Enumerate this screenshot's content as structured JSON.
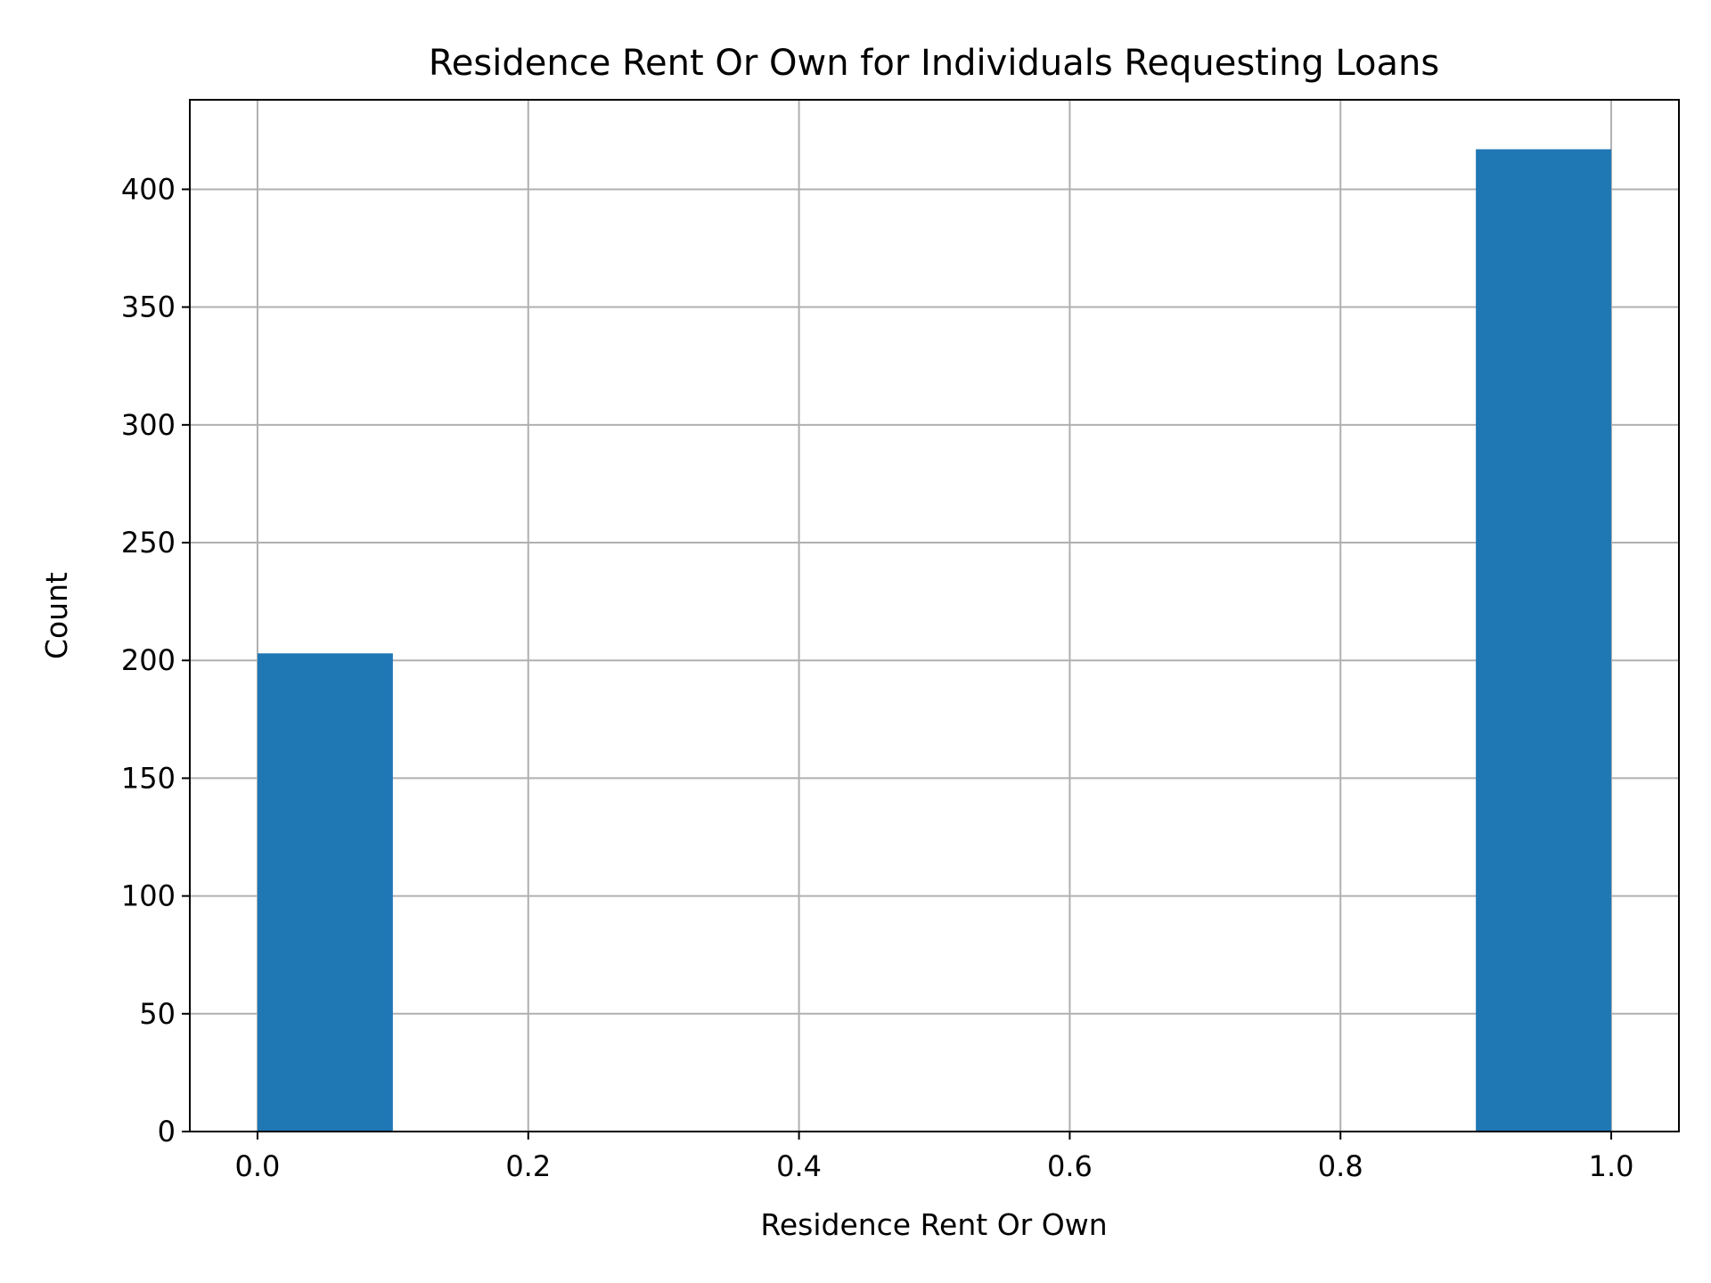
{
  "chart_data": {
    "type": "bar",
    "title": "Residence Rent Or Own for Individuals Requesting Loans",
    "xlabel": "Residence Rent Or Own",
    "ylabel": "Count",
    "xlim": [
      -0.05,
      1.05
    ],
    "ylim": [
      0,
      438
    ],
    "xticks": [
      0.0,
      0.2,
      0.4,
      0.6,
      0.8,
      1.0
    ],
    "xtick_labels": [
      "0.0",
      "0.2",
      "0.4",
      "0.6",
      "0.8",
      "1.0"
    ],
    "yticks": [
      0,
      50,
      100,
      150,
      200,
      250,
      300,
      350,
      400
    ],
    "ytick_labels": [
      "0",
      "50",
      "100",
      "150",
      "200",
      "250",
      "300",
      "350",
      "400"
    ],
    "grid": true,
    "bar_color": "#1f77b4",
    "bins": [
      {
        "x0": 0.0,
        "x1": 0.1,
        "count": 203
      },
      {
        "x0": 0.1,
        "x1": 0.2,
        "count": 0
      },
      {
        "x0": 0.2,
        "x1": 0.3,
        "count": 0
      },
      {
        "x0": 0.3,
        "x1": 0.4,
        "count": 0
      },
      {
        "x0": 0.4,
        "x1": 0.5,
        "count": 0
      },
      {
        "x0": 0.5,
        "x1": 0.6,
        "count": 0
      },
      {
        "x0": 0.6,
        "x1": 0.7,
        "count": 0
      },
      {
        "x0": 0.7,
        "x1": 0.8,
        "count": 0
      },
      {
        "x0": 0.8,
        "x1": 0.9,
        "count": 0
      },
      {
        "x0": 0.9,
        "x1": 1.0,
        "count": 417
      }
    ]
  }
}
